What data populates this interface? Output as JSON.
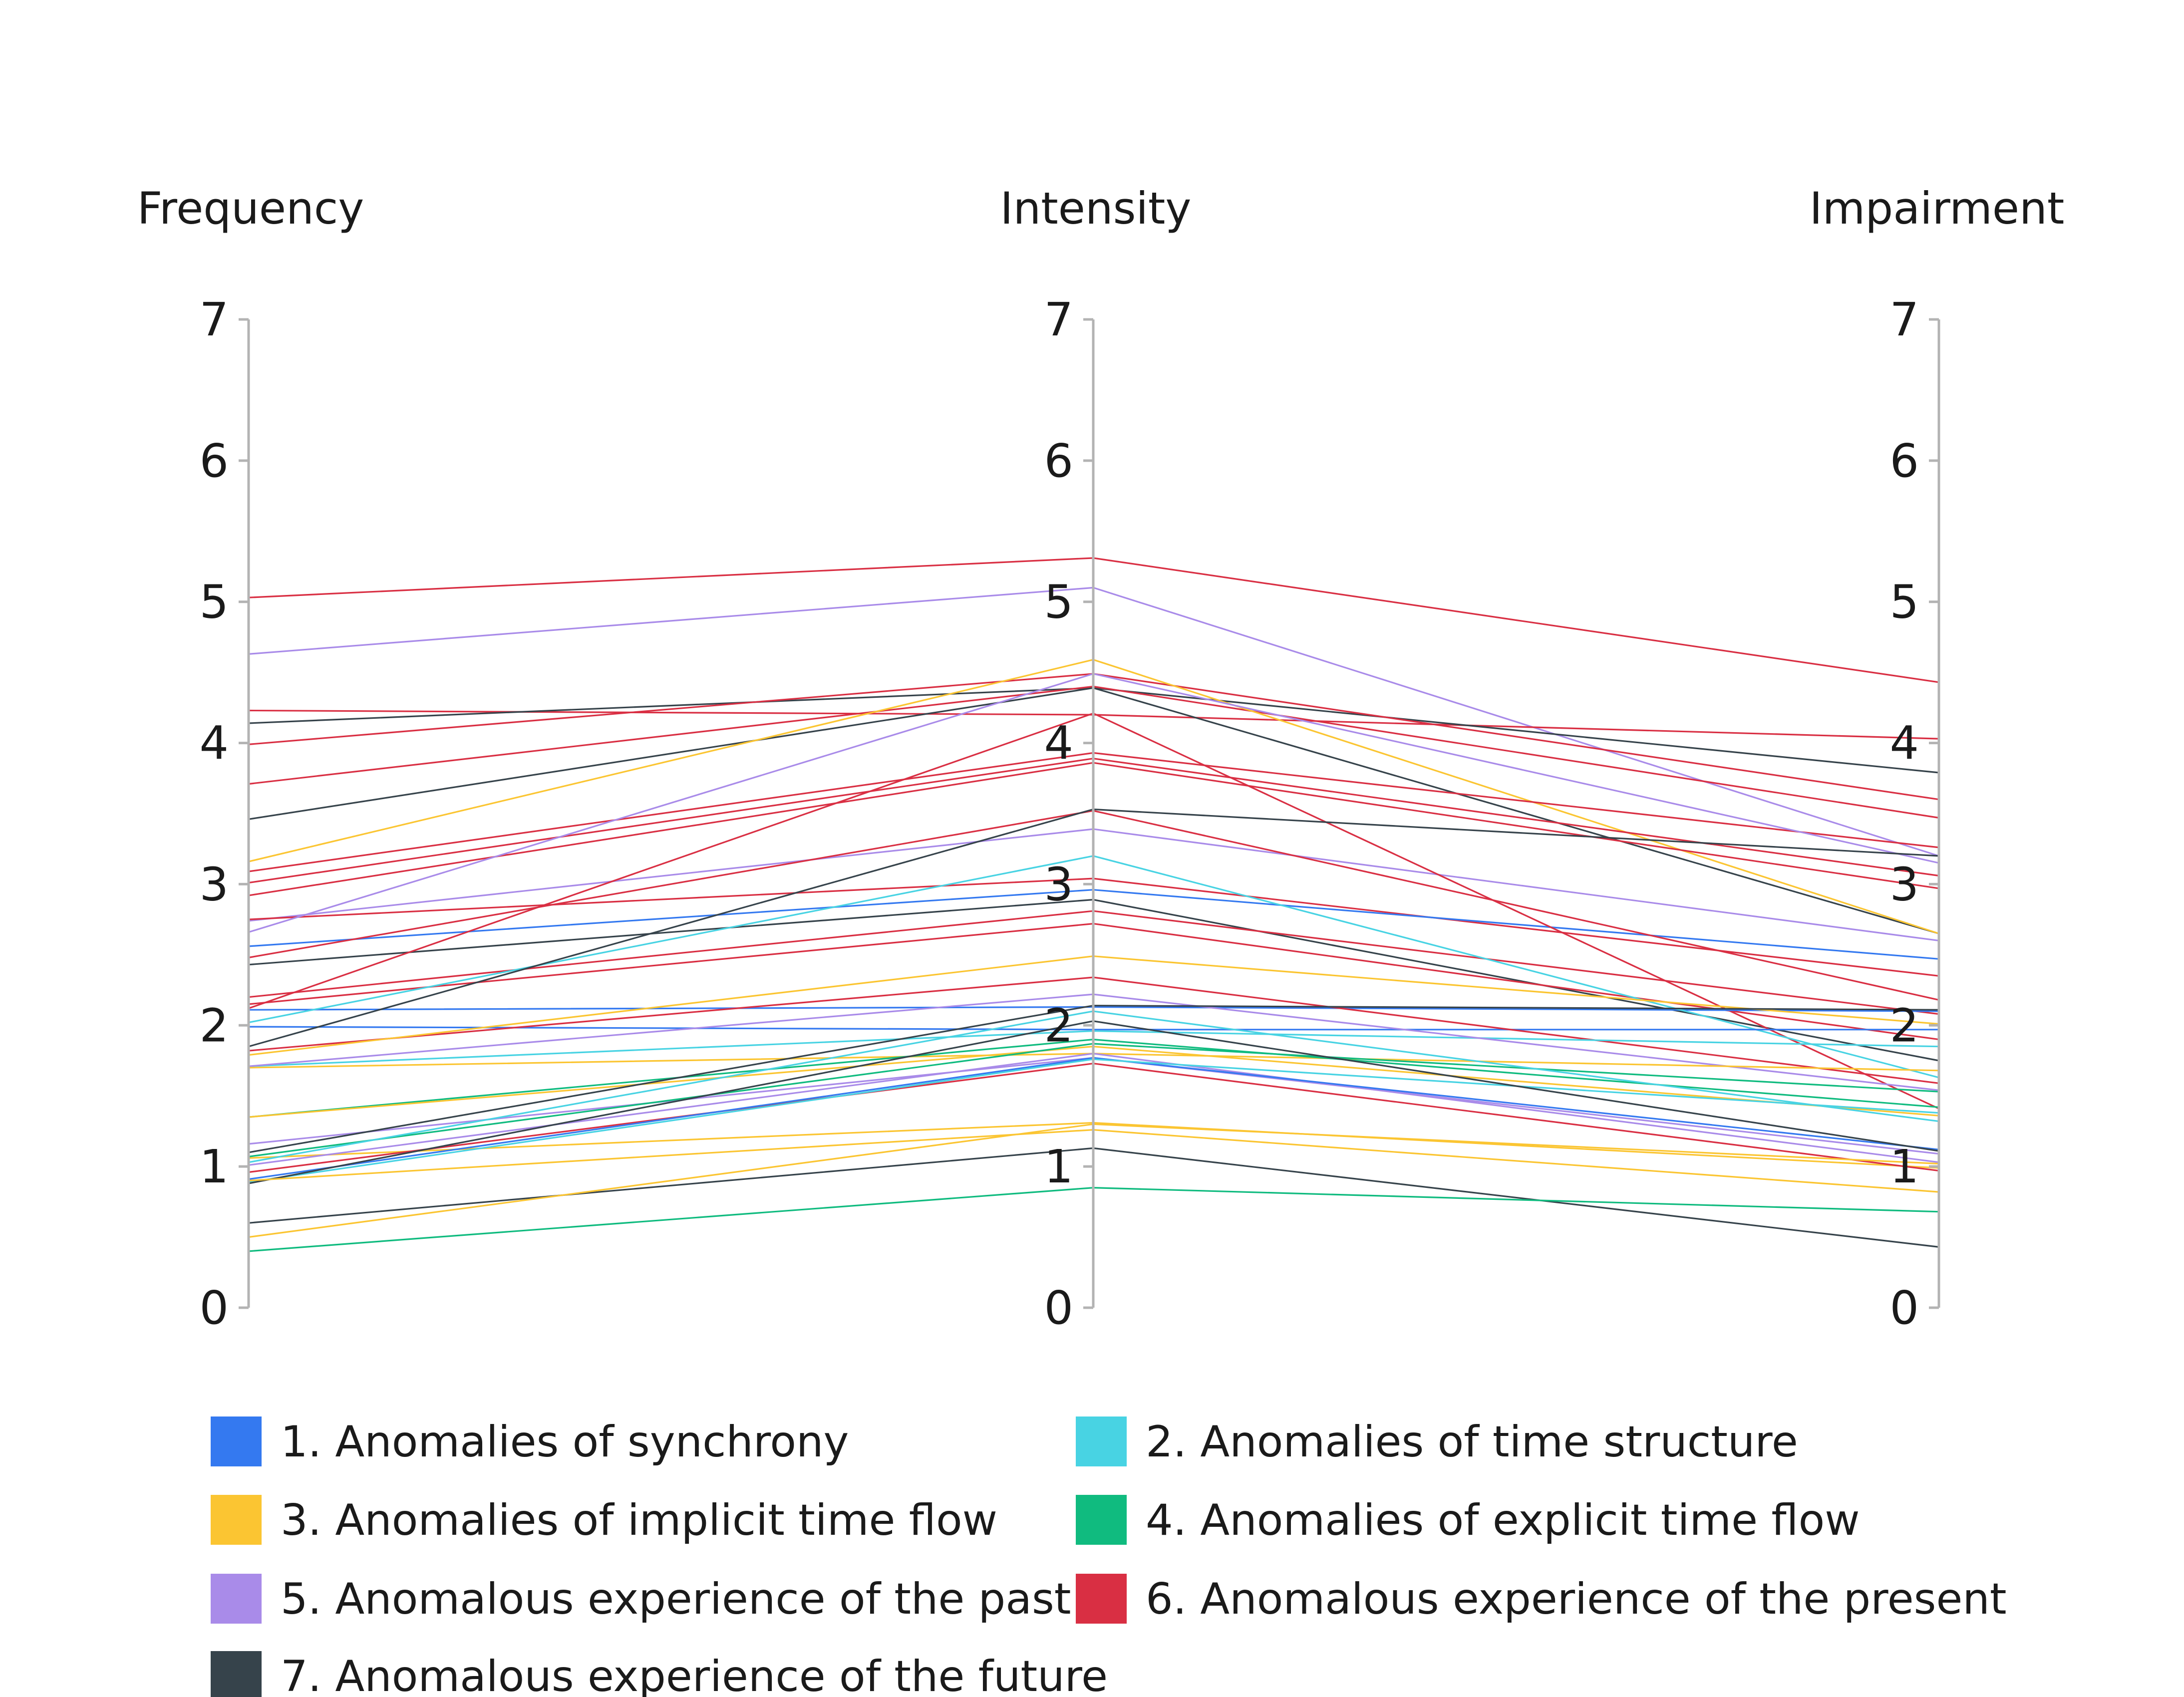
{
  "chart_data": {
    "type": "parallel-coordinates",
    "axes": [
      "Frequency",
      "Intensity",
      "Impairment"
    ],
    "ylim": [
      0,
      7
    ],
    "ticks": [
      "0",
      "1",
      "2",
      "3",
      "4",
      "5",
      "6",
      "7"
    ],
    "grid": false,
    "legend_position": "bottom",
    "categories": [
      {
        "id": 1,
        "label": "1. Anomalies of synchrony",
        "color": "#3479f0"
      },
      {
        "id": 2,
        "label": "2. Anomalies of time structure",
        "color": "#48d3e3"
      },
      {
        "id": 3,
        "label": "3. Anomalies of implicit time flow",
        "color": "#fbc532"
      },
      {
        "id": 4,
        "label": "4. Anomalies of explicit time flow",
        "color": "#10bb7f"
      },
      {
        "id": 5,
        "label": "5. Anomalous experience of the past",
        "color": "#a98be9"
      },
      {
        "id": 6,
        "label": "6. Anomalous experience of the present",
        "color": "#d92f43"
      },
      {
        "id": 7,
        "label": "7. Anomalous experience of the future",
        "color": "#36434b"
      }
    ],
    "lines": [
      {
        "category": 6,
        "values": [
          5.03,
          5.31,
          4.43
        ]
      },
      {
        "category": 5,
        "values": [
          4.63,
          5.1,
          3.2
        ]
      },
      {
        "category": 6,
        "values": [
          4.23,
          4.2,
          4.03
        ]
      },
      {
        "category": 7,
        "values": [
          4.14,
          4.39,
          3.79
        ]
      },
      {
        "category": 6,
        "values": [
          3.99,
          4.49,
          3.6
        ]
      },
      {
        "category": 6,
        "values": [
          3.71,
          4.4,
          3.47
        ]
      },
      {
        "category": 7,
        "values": [
          3.46,
          4.39,
          2.65
        ]
      },
      {
        "category": 3,
        "values": [
          3.16,
          4.59,
          2.65
        ]
      },
      {
        "category": 6,
        "values": [
          3.09,
          3.93,
          3.26
        ]
      },
      {
        "category": 6,
        "values": [
          3.01,
          3.89,
          3.06
        ]
      },
      {
        "category": 6,
        "values": [
          2.92,
          3.86,
          2.97
        ]
      },
      {
        "category": 5,
        "values": [
          2.74,
          3.39,
          2.6
        ]
      },
      {
        "category": 6,
        "values": [
          2.75,
          3.04,
          2.35
        ]
      },
      {
        "category": 5,
        "values": [
          2.66,
          4.49,
          3.15
        ]
      },
      {
        "category": 1,
        "values": [
          2.56,
          2.96,
          2.47
        ]
      },
      {
        "category": 6,
        "values": [
          2.48,
          3.52,
          2.18
        ]
      },
      {
        "category": 7,
        "values": [
          2.43,
          2.89,
          1.75
        ]
      },
      {
        "category": 6,
        "values": [
          2.2,
          2.81,
          2.08
        ]
      },
      {
        "category": 6,
        "values": [
          2.15,
          2.72,
          1.9
        ]
      },
      {
        "category": 6,
        "values": [
          2.12,
          4.21,
          1.41
        ]
      },
      {
        "category": 1,
        "values": [
          2.11,
          2.13,
          2.1
        ]
      },
      {
        "category": 2,
        "values": [
          2.02,
          3.2,
          1.63
        ]
      },
      {
        "category": 1,
        "values": [
          1.99,
          1.97,
          1.97
        ]
      },
      {
        "category": 7,
        "values": [
          1.85,
          3.53,
          3.2
        ]
      },
      {
        "category": 6,
        "values": [
          1.82,
          2.34,
          1.59
        ]
      },
      {
        "category": 3,
        "values": [
          1.79,
          2.49,
          2.01
        ]
      },
      {
        "category": 2,
        "values": [
          1.71,
          1.96,
          1.85
        ]
      },
      {
        "category": 5,
        "values": [
          1.71,
          2.22,
          1.54
        ]
      },
      {
        "category": 3,
        "values": [
          1.7,
          1.8,
          1.68
        ]
      },
      {
        "category": 4,
        "values": [
          1.35,
          1.9,
          1.42
        ]
      },
      {
        "category": 3,
        "values": [
          1.35,
          1.85,
          1.36
        ]
      },
      {
        "category": 5,
        "values": [
          1.16,
          1.77,
          1.09
        ]
      },
      {
        "category": 7,
        "values": [
          1.1,
          2.14,
          2.11
        ]
      },
      {
        "category": 4,
        "values": [
          1.07,
          1.87,
          1.53
        ]
      },
      {
        "category": 3,
        "values": [
          1.06,
          1.31,
          0.99
        ]
      },
      {
        "category": 2,
        "values": [
          1.03,
          2.1,
          1.32
        ]
      },
      {
        "category": 5,
        "values": [
          1.01,
          1.8,
          1.03
        ]
      },
      {
        "category": 6,
        "values": [
          0.96,
          1.73,
          0.97
        ]
      },
      {
        "category": 1,
        "values": [
          0.91,
          1.77,
          1.12
        ]
      },
      {
        "category": 2,
        "values": [
          0.89,
          1.76,
          1.38
        ]
      },
      {
        "category": 7,
        "values": [
          0.88,
          2.03,
          1.11
        ]
      },
      {
        "category": 3,
        "values": [
          0.9,
          1.26,
          0.82
        ]
      },
      {
        "category": 7,
        "values": [
          0.6,
          1.13,
          0.43
        ]
      },
      {
        "category": 3,
        "values": [
          0.5,
          1.3,
          1.02
        ]
      },
      {
        "category": 4,
        "values": [
          0.4,
          0.85,
          0.68
        ]
      }
    ]
  }
}
